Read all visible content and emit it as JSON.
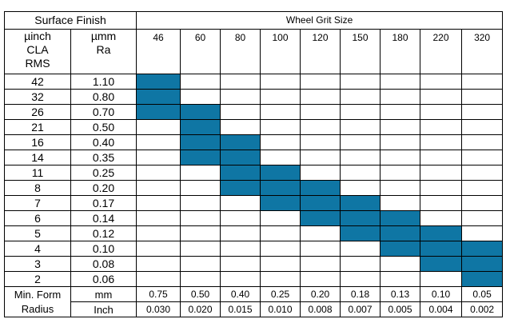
{
  "header": {
    "surface_finish": "Surface Finish",
    "wheel_grit_size": "Wheel Grit Size",
    "col_uinch": "µinch\nCLA\nRMS",
    "col_umm": "µmm\nRa"
  },
  "grits": [
    "46",
    "60",
    "80",
    "100",
    "120",
    "150",
    "180",
    "220",
    "320"
  ],
  "highlight_color": "#0f76a4",
  "rows": [
    {
      "uinch": "42",
      "umm": "1.10",
      "grits": [
        "46"
      ]
    },
    {
      "uinch": "32",
      "umm": "0.80",
      "grits": [
        "46"
      ]
    },
    {
      "uinch": "26",
      "umm": "0.70",
      "grits": [
        "46",
        "60"
      ]
    },
    {
      "uinch": "21",
      "umm": "0.50",
      "grits": [
        "60"
      ]
    },
    {
      "uinch": "16",
      "umm": "0.40",
      "grits": [
        "60",
        "80"
      ]
    },
    {
      "uinch": "14",
      "umm": "0.35",
      "grits": [
        "60",
        "80"
      ]
    },
    {
      "uinch": "11",
      "umm": "0.25",
      "grits": [
        "80",
        "100"
      ]
    },
    {
      "uinch": "8",
      "umm": "0.20",
      "grits": [
        "80",
        "100",
        "120"
      ]
    },
    {
      "uinch": "7",
      "umm": "0.17",
      "grits": [
        "100",
        "120",
        "150"
      ]
    },
    {
      "uinch": "6",
      "umm": "0.14",
      "grits": [
        "120",
        "150",
        "180"
      ]
    },
    {
      "uinch": "5",
      "umm": "0.12",
      "grits": [
        "150",
        "180",
        "220"
      ]
    },
    {
      "uinch": "4",
      "umm": "0.10",
      "grits": [
        "180",
        "220",
        "320"
      ]
    },
    {
      "uinch": "3",
      "umm": "0.08",
      "grits": [
        "220",
        "320"
      ]
    },
    {
      "uinch": "2",
      "umm": "0.06",
      "grits": [
        "320"
      ]
    }
  ],
  "footer": {
    "label_line1": "Min. Form",
    "label_line2": "Radius",
    "unit_mm": "mm",
    "unit_inch": "Inch",
    "mm": [
      "0.75",
      "0.50",
      "0.40",
      "0.25",
      "0.20",
      "0.18",
      "0.13",
      "0.10",
      "0.05"
    ],
    "inch": [
      "0.030",
      "0.020",
      "0.015",
      "0.010",
      "0.008",
      "0.007",
      "0.005",
      "0.004",
      "0.002"
    ]
  }
}
